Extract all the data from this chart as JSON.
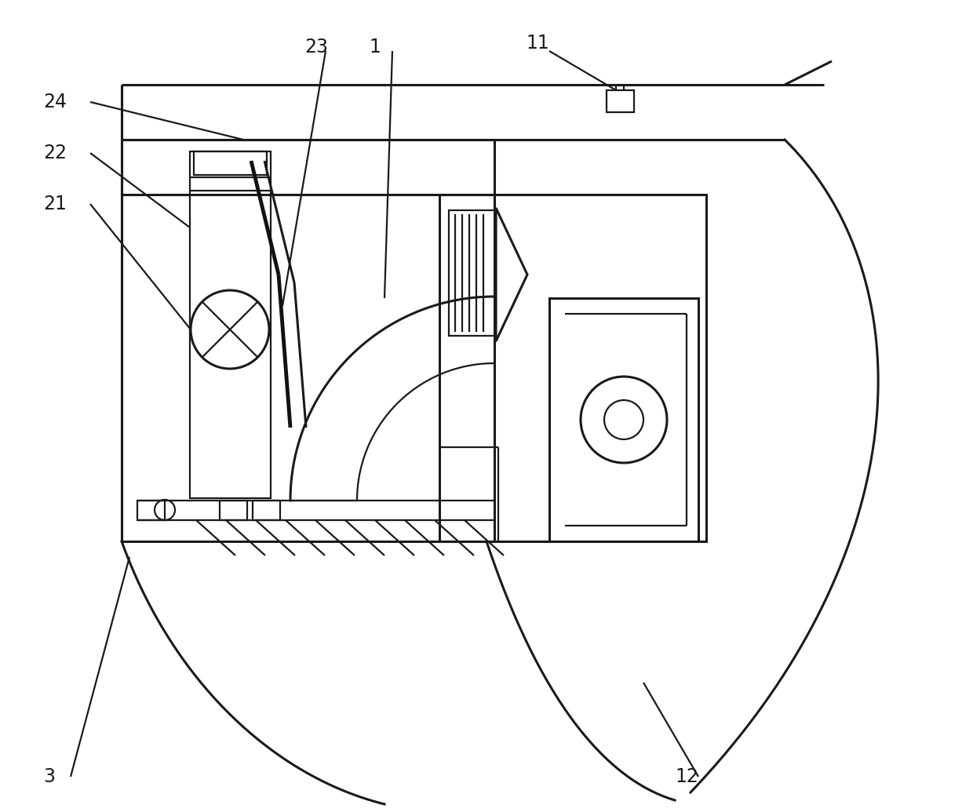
{
  "bg_color": "#ffffff",
  "lc": "#1a1a1a",
  "lw": 1.6,
  "lw2": 2.2,
  "lw3": 3.5
}
